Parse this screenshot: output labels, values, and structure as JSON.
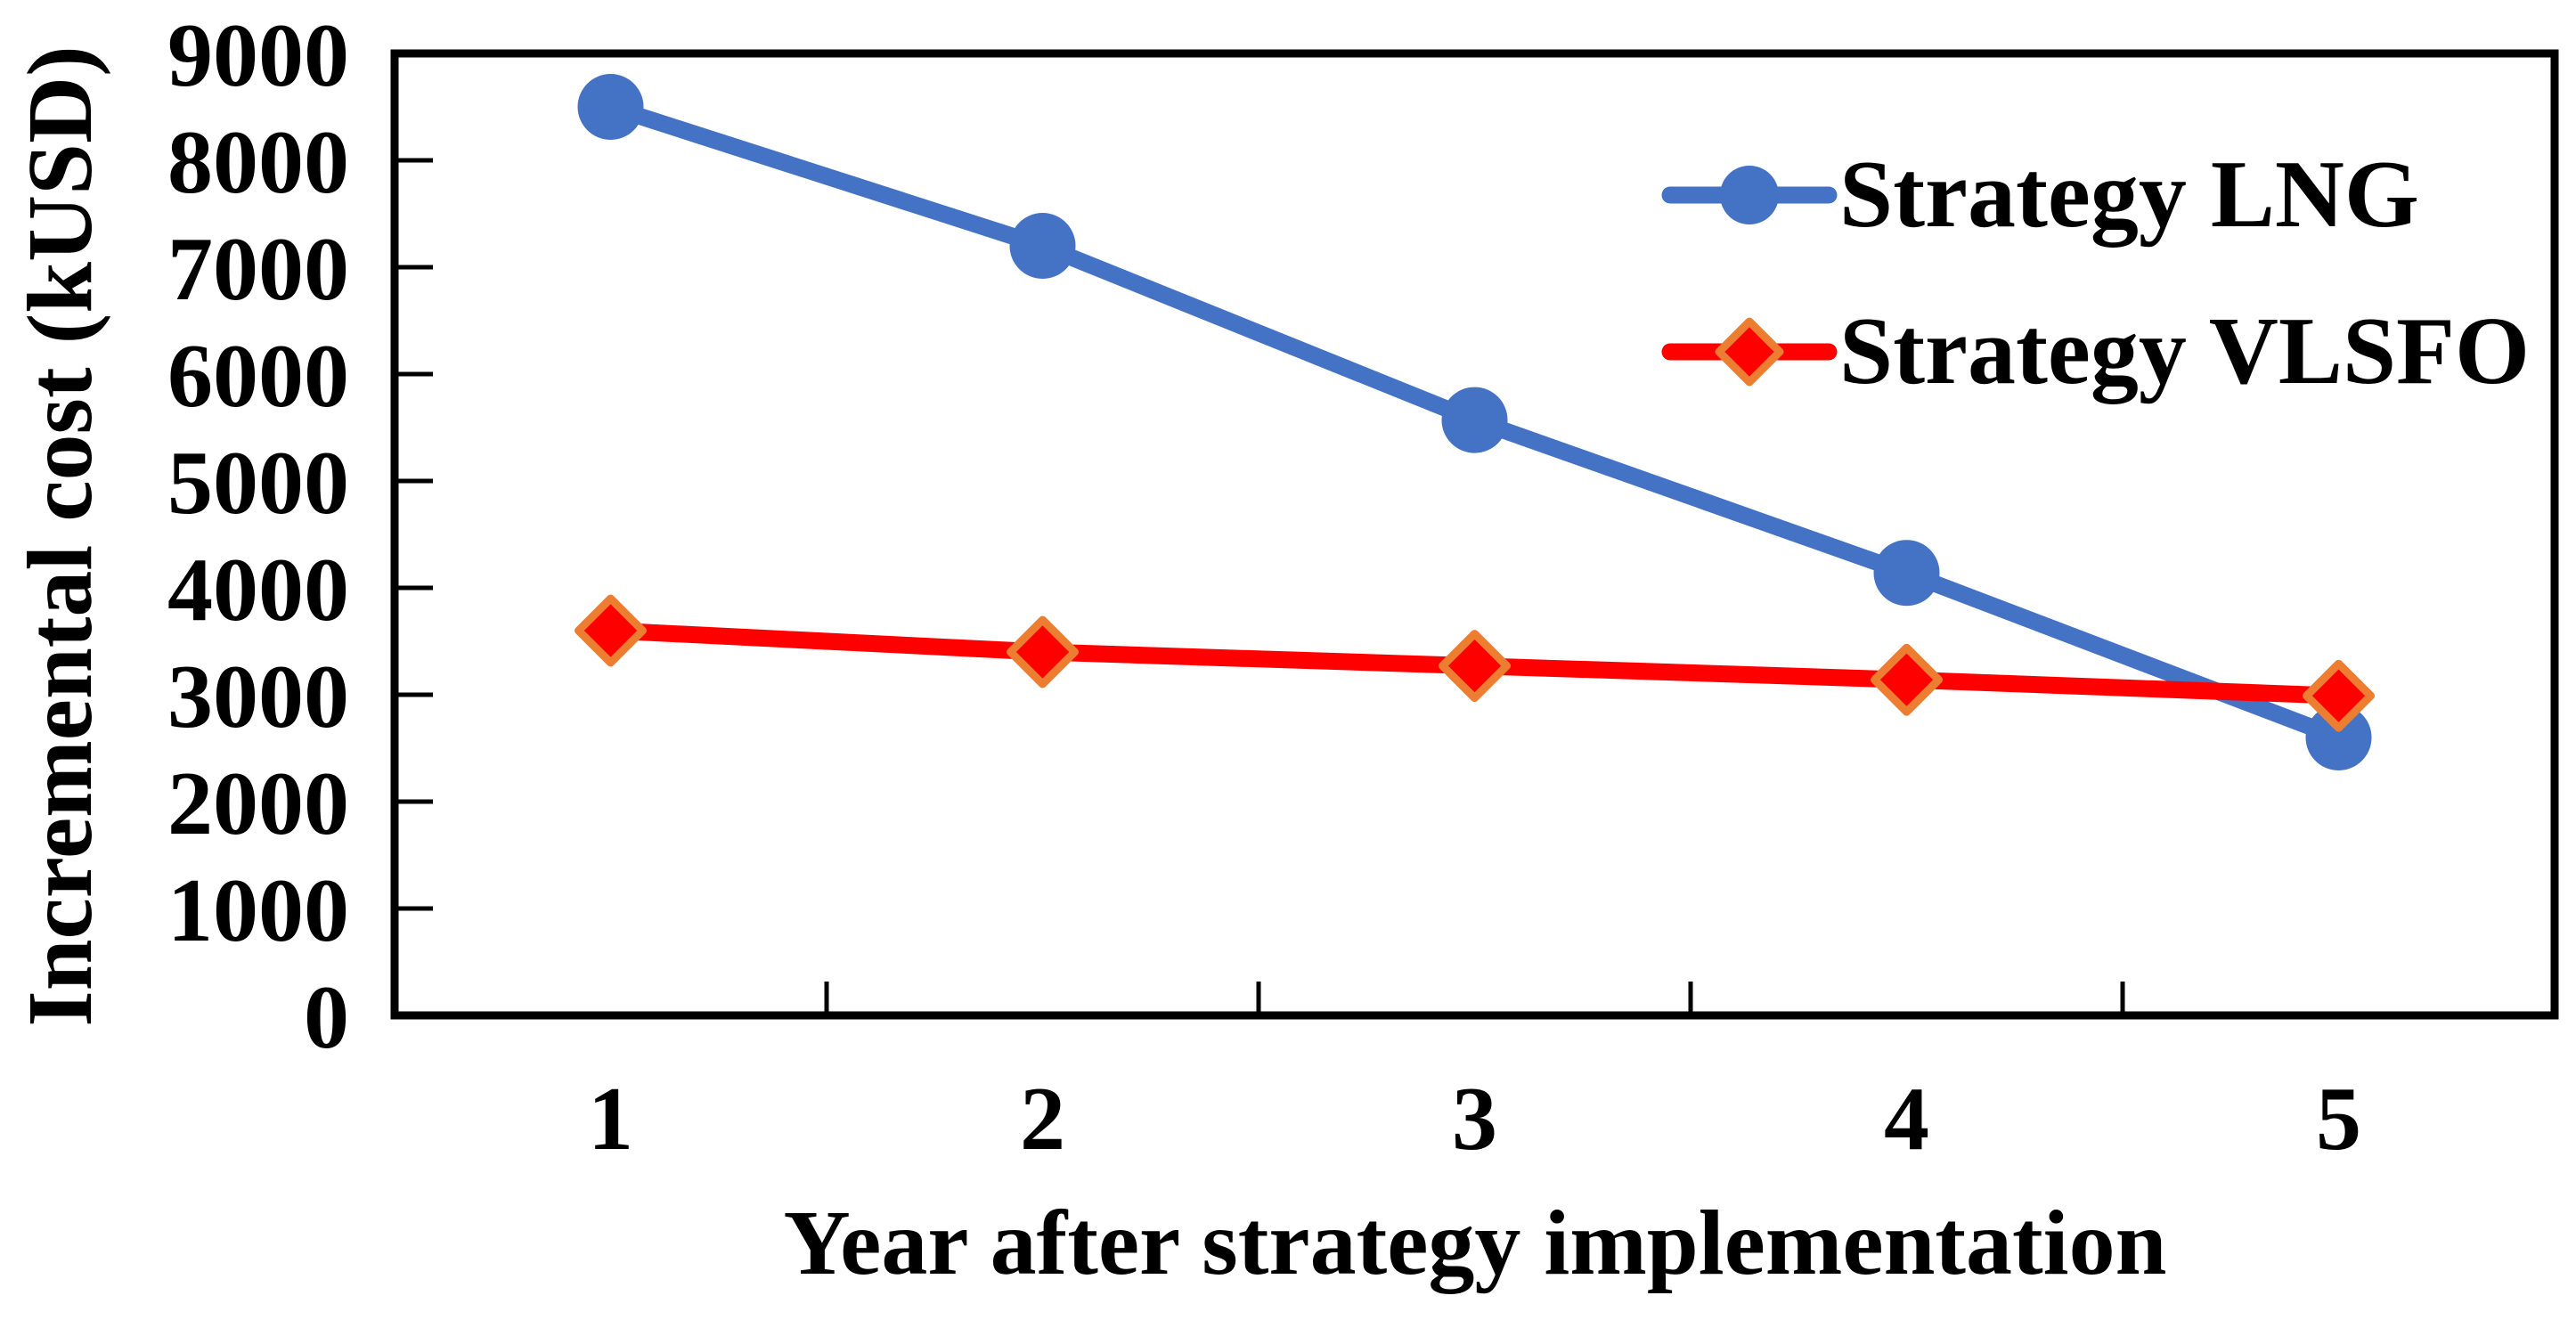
{
  "figure": {
    "x_axis_title": "Year after strategy implementation",
    "y_axis_title": "Incremental cost (kUSD)"
  },
  "legend": {
    "items": [
      {
        "label": "Strategy LNG",
        "marker": "circle-icon",
        "color": "#4472C4"
      },
      {
        "label": "Strategy VLSFO",
        "marker": "diamond-icon",
        "color": "#FF0000",
        "marker_outline": "#ED7D31"
      }
    ]
  },
  "chart_data": {
    "type": "line",
    "title": "",
    "xlabel": "Year after strategy implementation",
    "ylabel": "Incremental cost (kUSD)",
    "categories": [
      "1",
      "2",
      "3",
      "4",
      "5"
    ],
    "series": [
      {
        "name": "Strategy LNG",
        "color": "#4472C4",
        "marker": "circle",
        "values": [
          8500,
          7200,
          5570,
          4140,
          2600
        ]
      },
      {
        "name": "Strategy VLSFO",
        "color": "#FF0000",
        "marker": "diamond",
        "marker_outline": "#ED7D31",
        "values": [
          3600,
          3400,
          3270,
          3140,
          2990
        ]
      }
    ],
    "ylim": [
      0,
      9000
    ],
    "ytick_step": 1000,
    "ytick_values": [
      0,
      1000,
      2000,
      3000,
      4000,
      5000,
      6000,
      7000,
      8000,
      9000
    ],
    "grid": false,
    "legend_position": "upper-right-inside",
    "axis_color": "#000000",
    "background_color": "#FFFFFF"
  }
}
